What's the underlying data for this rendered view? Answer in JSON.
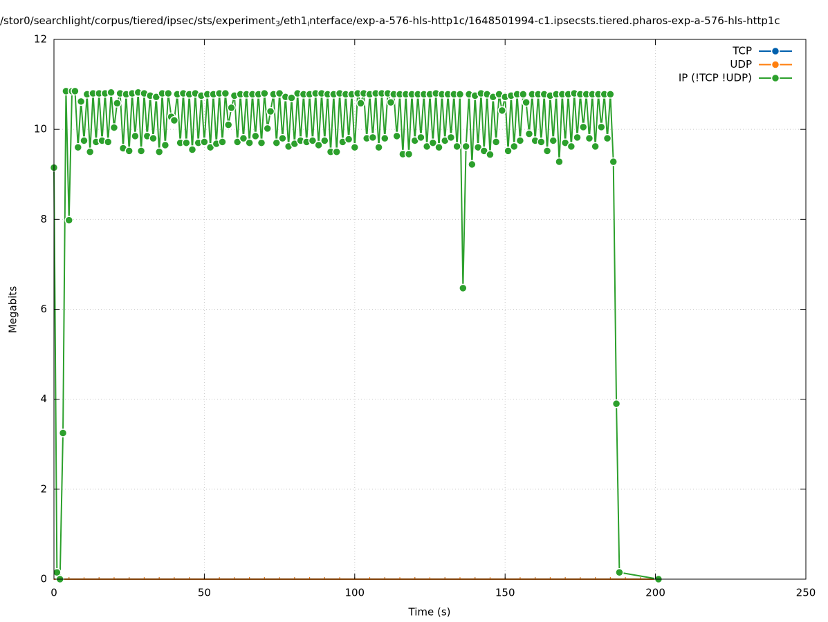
{
  "chart_data": {
    "type": "line",
    "title": {
      "parts": [
        "/stor0/searchlight/corpus/tiered/ipsec/sts/experiment",
        "3",
        "/eth1",
        "i",
        "nterface/exp-a-576-hls-http1c/1648501994-c1.ipsecsts.tiered.pharos-exp-a-576-hls-http1c"
      ],
      "subscripts": [
        1,
        3
      ]
    },
    "x_label": "Time (s)",
    "y_label": "Megabits",
    "xlim": [
      0,
      250
    ],
    "xticks": [
      0,
      50,
      100,
      150,
      200,
      250
    ],
    "ylim": [
      0,
      12
    ],
    "yticks": [
      0,
      2,
      4,
      6,
      8,
      10,
      12
    ],
    "grid": true,
    "legend": "top-right",
    "series": [
      {
        "name": "TCP",
        "color": "#0060ad",
        "x": [
          0,
          5,
          10,
          15,
          20,
          25,
          30,
          35,
          40,
          45,
          50,
          55,
          60,
          65,
          70,
          75,
          80,
          85,
          90,
          95,
          100,
          105,
          110,
          115,
          120,
          125,
          130,
          135,
          140,
          145,
          150,
          155,
          160,
          165,
          170,
          175,
          180,
          185,
          190,
          195,
          200
        ],
        "values": [
          0,
          0,
          0,
          0,
          0,
          0,
          0,
          0,
          0,
          0,
          0,
          0,
          0,
          0,
          0,
          0,
          0,
          0,
          0,
          0,
          0,
          0,
          0,
          0,
          0,
          0,
          0,
          0,
          0,
          0,
          0,
          0,
          0,
          0,
          0,
          0,
          0,
          0,
          0,
          0,
          0
        ]
      },
      {
        "name": "UDP",
        "color": "#ff7f0e",
        "x": [
          0,
          5,
          10,
          15,
          20,
          25,
          30,
          35,
          40,
          45,
          50,
          55,
          60,
          65,
          70,
          75,
          80,
          85,
          90,
          95,
          100,
          105,
          110,
          115,
          120,
          125,
          130,
          135,
          140,
          145,
          150,
          155,
          160,
          165,
          170,
          175,
          180,
          185,
          190,
          195,
          200
        ],
        "values": [
          0,
          0,
          0,
          0,
          0,
          0,
          0,
          0,
          0,
          0,
          0,
          0,
          0,
          0,
          0,
          0,
          0,
          0,
          0,
          0,
          0,
          0,
          0,
          0,
          0,
          0,
          0,
          0,
          0,
          0,
          0,
          0,
          0,
          0,
          0,
          0,
          0,
          0,
          0,
          0,
          0
        ]
      },
      {
        "name": "IP (!TCP  !UDP)",
        "color": "#2ca02c",
        "x": [
          0,
          1,
          2,
          3,
          4,
          5,
          6,
          7,
          8,
          9,
          10,
          11,
          12,
          13,
          14,
          15,
          16,
          17,
          18,
          19,
          20,
          21,
          22,
          23,
          24,
          25,
          26,
          27,
          28,
          29,
          30,
          31,
          32,
          33,
          34,
          35,
          36,
          37,
          38,
          39,
          40,
          41,
          42,
          43,
          44,
          45,
          46,
          47,
          48,
          49,
          50,
          51,
          52,
          53,
          54,
          55,
          56,
          57,
          58,
          59,
          60,
          61,
          62,
          63,
          64,
          65,
          66,
          67,
          68,
          69,
          70,
          71,
          72,
          73,
          74,
          75,
          76,
          77,
          78,
          79,
          80,
          81,
          82,
          83,
          84,
          85,
          86,
          87,
          88,
          89,
          90,
          91,
          92,
          93,
          94,
          95,
          96,
          97,
          98,
          99,
          100,
          101,
          102,
          103,
          104,
          105,
          106,
          107,
          108,
          109,
          110,
          111,
          112,
          113,
          114,
          115,
          116,
          117,
          118,
          119,
          120,
          121,
          122,
          123,
          124,
          125,
          126,
          127,
          128,
          129,
          130,
          131,
          132,
          133,
          134,
          135,
          136,
          137,
          138,
          139,
          140,
          141,
          142,
          143,
          144,
          145,
          146,
          147,
          148,
          149,
          150,
          151,
          152,
          153,
          154,
          155,
          156,
          157,
          158,
          159,
          160,
          161,
          162,
          163,
          164,
          165,
          166,
          167,
          168,
          169,
          170,
          171,
          172,
          173,
          174,
          175,
          176,
          177,
          178,
          179,
          180,
          181,
          182,
          183,
          184,
          185,
          186,
          187,
          188,
          201
        ],
        "values": [
          9.15,
          0.15,
          0,
          3.25,
          10.85,
          7.98,
          10.85,
          10.85,
          9.6,
          10.62,
          9.75,
          10.78,
          9.5,
          10.8,
          9.72,
          10.8,
          9.75,
          10.8,
          9.72,
          10.82,
          10.04,
          10.58,
          10.8,
          9.58,
          10.78,
          9.52,
          10.8,
          9.85,
          10.82,
          9.52,
          10.8,
          9.85,
          10.75,
          9.8,
          10.72,
          9.5,
          10.8,
          9.65,
          10.8,
          10.28,
          10.2,
          10.78,
          9.7,
          10.8,
          9.7,
          10.78,
          9.55,
          10.8,
          9.7,
          10.75,
          9.72,
          10.78,
          9.6,
          10.78,
          9.68,
          10.8,
          9.72,
          10.8,
          10.1,
          10.48,
          10.75,
          9.72,
          10.78,
          9.8,
          10.78,
          9.7,
          10.78,
          9.85,
          10.78,
          9.7,
          10.8,
          10.02,
          10.4,
          10.78,
          9.7,
          10.8,
          9.8,
          10.72,
          9.62,
          10.7,
          9.68,
          10.8,
          9.75,
          10.78,
          9.72,
          10.78,
          9.75,
          10.8,
          9.65,
          10.8,
          9.75,
          10.78,
          9.5,
          10.78,
          9.5,
          10.8,
          9.72,
          10.78,
          9.78,
          10.78,
          9.6,
          10.8,
          10.58,
          10.8,
          9.8,
          10.78,
          9.82,
          10.8,
          9.6,
          10.8,
          9.8,
          10.8,
          10.6,
          10.78,
          9.85,
          10.78,
          9.45,
          10.78,
          9.45,
          10.78,
          9.75,
          10.78,
          9.82,
          10.78,
          9.62,
          10.78,
          9.7,
          10.8,
          9.6,
          10.78,
          9.75,
          10.78,
          9.82,
          10.78,
          9.62,
          10.78,
          6.47,
          9.62,
          10.78,
          9.22,
          10.75,
          9.6,
          10.8,
          9.52,
          10.78,
          9.44,
          10.72,
          9.72,
          10.78,
          10.42,
          10.72,
          9.52,
          10.75,
          9.62,
          10.78,
          9.75,
          10.78,
          10.6,
          9.9,
          10.78,
          9.75,
          10.78,
          9.72,
          10.78,
          9.52,
          10.75,
          9.75,
          10.78,
          9.28,
          10.78,
          9.7,
          10.78,
          9.62,
          10.8,
          9.82,
          10.78,
          10.05,
          10.78,
          9.8,
          10.78,
          9.62,
          10.78,
          10.05,
          10.78,
          9.8,
          10.78,
          9.28,
          3.9,
          0.15,
          0
        ]
      }
    ]
  }
}
